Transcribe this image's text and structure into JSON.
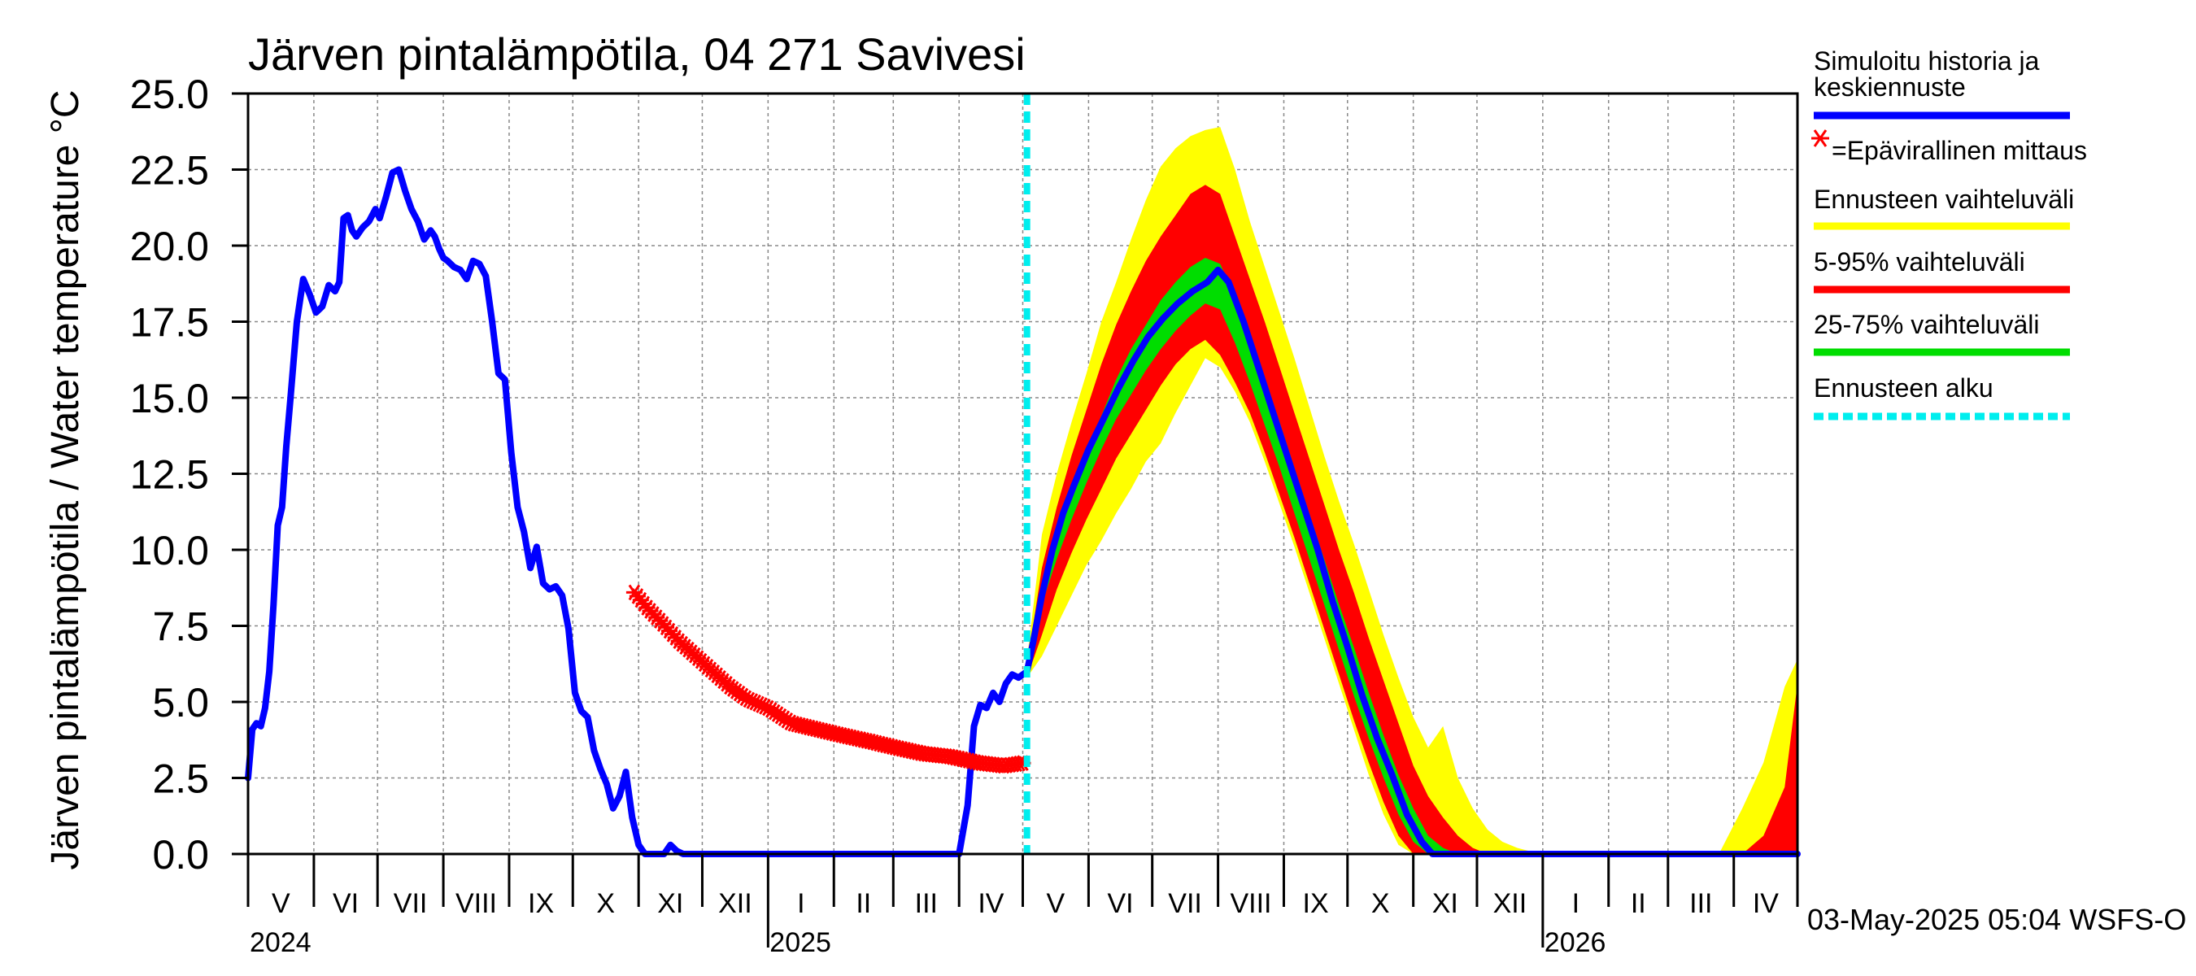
{
  "chart_data": {
    "type": "line",
    "title": "Järven pintalämpötila, 04 271 Savivesi",
    "ylabel": "Järven pintalämpötila / Water temperature °C",
    "xlabel": "",
    "ylim": [
      0.0,
      25.0
    ],
    "yticks": [
      "0.0",
      "2.5",
      "5.0",
      "7.5",
      "10.0",
      "12.5",
      "15.0",
      "17.5",
      "20.0",
      "22.5",
      "25.0"
    ],
    "xlim": [
      "2024-05-01",
      "2026-05-01"
    ],
    "month_labels": [
      "V",
      "VI",
      "VII",
      "VIII",
      "IX",
      "X",
      "XI",
      "XII",
      "I",
      "II",
      "III",
      "IV",
      "V",
      "VI",
      "VII",
      "VIII",
      "IX",
      "X",
      "XI",
      "XII",
      "I",
      "II",
      "III",
      "IV"
    ],
    "year_labels": [
      "2024",
      "2025",
      "2026"
    ],
    "forecast_start": "2025-05-03",
    "footer": "03-May-2025 05:04 WSFS-O",
    "grid": true,
    "legend_position": "right",
    "legend": [
      {
        "label": "Simuloitu historia ja keskiennuste",
        "color": "#0000ff",
        "style": "line"
      },
      {
        "label": "=Epävirallinen mittaus",
        "color": "#ff0000",
        "style": "marker"
      },
      {
        "label": "Ennusteen vaihteluväli",
        "color": "#ffff00",
        "style": "line"
      },
      {
        "label": "5-95% vaihteluväli",
        "color": "#ff0000",
        "style": "line"
      },
      {
        "label": "25-75% vaihteluväli",
        "color": "#00dd00",
        "style": "line"
      },
      {
        "label": "Ennusteen alku",
        "color": "#00eeee",
        "style": "dashed"
      }
    ],
    "colors": {
      "simulated": "#0000ff",
      "measured": "#ff0000",
      "range_full": "#ffff00",
      "range_5_95": "#ff0000",
      "range_25_75": "#00dd00",
      "forecast_start": "#00eeee"
    },
    "series": [
      {
        "name": "Simuloitu historia ja keskiennuste",
        "x": [
          "2024-05-01",
          "2024-05-03",
          "2024-05-05",
          "2024-05-07",
          "2024-05-09",
          "2024-05-11",
          "2024-05-13",
          "2024-05-15",
          "2024-05-17",
          "2024-05-19",
          "2024-05-21",
          "2024-05-24",
          "2024-05-27",
          "2024-05-30",
          "2024-06-02",
          "2024-06-05",
          "2024-06-08",
          "2024-06-11",
          "2024-06-13",
          "2024-06-15",
          "2024-06-17",
          "2024-06-19",
          "2024-06-21",
          "2024-06-24",
          "2024-06-27",
          "2024-06-30",
          "2024-07-02",
          "2024-07-05",
          "2024-07-08",
          "2024-07-11",
          "2024-07-14",
          "2024-07-17",
          "2024-07-20",
          "2024-07-23",
          "2024-07-26",
          "2024-07-28",
          "2024-07-30",
          "2024-08-01",
          "2024-08-03",
          "2024-08-06",
          "2024-08-09",
          "2024-08-12",
          "2024-08-15",
          "2024-08-18",
          "2024-08-21",
          "2024-08-24",
          "2024-08-27",
          "2024-08-30",
          "2024-09-02",
          "2024-09-05",
          "2024-09-08",
          "2024-09-11",
          "2024-09-14",
          "2024-09-17",
          "2024-09-20",
          "2024-09-23",
          "2024-09-26",
          "2024-09-29",
          "2024-10-02",
          "2024-10-05",
          "2024-10-08",
          "2024-10-11",
          "2024-10-14",
          "2024-10-17",
          "2024-10-20",
          "2024-10-23",
          "2024-10-26",
          "2024-10-29",
          "2024-11-01",
          "2024-11-04",
          "2024-11-07",
          "2024-11-10",
          "2024-11-13",
          "2024-11-16",
          "2024-11-19",
          "2024-11-22",
          "2024-11-25",
          "2024-11-28",
          "2024-12-01",
          "2024-12-04",
          "2024-12-08",
          "2024-12-13",
          "2024-12-18",
          "2024-12-22",
          "2024-12-25",
          "2024-12-28",
          "2025-01-05",
          "2025-02-01",
          "2025-03-01",
          "2025-04-01",
          "2025-04-05",
          "2025-04-08",
          "2025-04-11",
          "2025-04-14",
          "2025-04-17",
          "2025-04-20",
          "2025-04-23",
          "2025-04-26",
          "2025-04-29",
          "2025-05-03",
          "2025-05-06",
          "2025-05-10",
          "2025-05-15",
          "2025-05-20",
          "2025-05-25",
          "2025-06-01",
          "2025-06-08",
          "2025-06-15",
          "2025-06-22",
          "2025-06-29",
          "2025-07-06",
          "2025-07-13",
          "2025-07-20",
          "2025-07-27",
          "2025-08-01",
          "2025-08-06",
          "2025-08-13",
          "2025-08-20",
          "2025-08-27",
          "2025-09-03",
          "2025-09-10",
          "2025-09-17",
          "2025-09-24",
          "2025-10-01",
          "2025-10-08",
          "2025-10-15",
          "2025-10-22",
          "2025-10-29",
          "2025-11-05",
          "2025-11-10",
          "2025-11-15",
          "2025-12-01",
          "2026-01-01",
          "2026-02-01",
          "2026-03-01",
          "2026-04-01",
          "2026-05-01"
        ],
        "values": [
          2.5,
          4.1,
          4.3,
          4.2,
          4.8,
          6.0,
          8.2,
          10.8,
          11.4,
          13.4,
          15.0,
          17.5,
          18.9,
          18.4,
          17.8,
          18.0,
          18.7,
          18.5,
          18.8,
          20.9,
          21.0,
          20.5,
          20.3,
          20.6,
          20.8,
          21.2,
          20.9,
          21.6,
          22.4,
          22.5,
          21.8,
          21.2,
          20.8,
          20.2,
          20.5,
          20.3,
          19.9,
          19.6,
          19.5,
          19.3,
          19.2,
          18.9,
          19.5,
          19.4,
          19.0,
          17.5,
          15.8,
          15.6,
          13.2,
          11.4,
          10.6,
          9.4,
          10.1,
          8.9,
          8.7,
          8.8,
          8.5,
          7.4,
          5.3,
          4.7,
          4.5,
          3.4,
          2.8,
          2.3,
          1.5,
          1.9,
          2.7,
          1.2,
          0.3,
          0.0,
          0.0,
          0.0,
          0.0,
          0.3,
          0.1,
          0.0,
          0.0,
          0.0,
          0.0,
          0.0,
          0.0,
          0.0,
          0.0,
          0.0,
          0.0,
          0.0,
          0.0,
          0.0,
          0.0,
          0.0,
          1.6,
          4.2,
          4.9,
          4.8,
          5.3,
          5.0,
          5.6,
          5.9,
          5.8,
          6.0,
          7.0,
          8.5,
          10.0,
          11.2,
          12.1,
          13.3,
          14.3,
          15.3,
          16.2,
          17.0,
          17.6,
          18.1,
          18.5,
          18.8,
          19.2,
          18.8,
          17.5,
          16.0,
          14.5,
          13.0,
          11.5,
          10.0,
          8.3,
          6.8,
          5.2,
          3.8,
          2.6,
          1.3,
          0.4,
          0.0,
          0.0,
          0.0,
          0.0,
          0.0,
          0.0,
          0.0,
          0.0
        ]
      },
      {
        "name": "=Epävirallinen mittaus",
        "x": [
          "2024-10-30",
          "2024-11-05",
          "2024-11-12",
          "2024-11-20",
          "2024-11-28",
          "2024-12-06",
          "2024-12-14",
          "2024-12-22",
          "2025-01-01",
          "2025-01-12",
          "2025-01-24",
          "2025-02-05",
          "2025-02-18",
          "2025-03-02",
          "2025-03-15",
          "2025-03-28",
          "2025-04-10",
          "2025-04-22",
          "2025-05-02"
        ],
        "values": [
          8.6,
          8.1,
          7.6,
          7.0,
          6.5,
          6.0,
          5.5,
          5.1,
          4.8,
          4.3,
          4.1,
          3.9,
          3.7,
          3.5,
          3.3,
          3.2,
          3.0,
          2.9,
          3.0
        ]
      }
    ],
    "forecast_dates": [
      "2025-05-03",
      "2025-05-10",
      "2025-05-17",
      "2025-05-24",
      "2025-05-31",
      "2025-06-07",
      "2025-06-14",
      "2025-06-21",
      "2025-06-28",
      "2025-07-05",
      "2025-07-12",
      "2025-07-19",
      "2025-07-26",
      "2025-08-02",
      "2025-08-09",
      "2025-08-16",
      "2025-08-23",
      "2025-08-30",
      "2025-09-06",
      "2025-09-13",
      "2025-09-20",
      "2025-09-27",
      "2025-10-04",
      "2025-10-11",
      "2025-10-18",
      "2025-10-25",
      "2025-11-01",
      "2025-11-08",
      "2025-11-15",
      "2025-11-22",
      "2025-11-29",
      "2025-12-06",
      "2025-12-13",
      "2025-12-20",
      "2025-12-31",
      "2026-03-25",
      "2026-04-05",
      "2026-04-15",
      "2026-04-25",
      "2026-05-01"
    ],
    "bands": {
      "range_full": {
        "lower": [
          5.8,
          6.5,
          7.5,
          8.5,
          9.5,
          10.3,
          11.2,
          12.0,
          12.9,
          13.5,
          14.5,
          15.4,
          16.3,
          16.0,
          15.2,
          14.2,
          12.9,
          11.5,
          10.1,
          8.6,
          7.1,
          5.6,
          4.1,
          2.6,
          1.3,
          0.3,
          0.0,
          0.0,
          0.0,
          0.0,
          0.0,
          0.0,
          0.0,
          0.0,
          0.0,
          0.0,
          0.0,
          0.0,
          0.0,
          0.0
        ],
        "upper": [
          6.4,
          10.5,
          12.5,
          14.2,
          15.8,
          17.5,
          18.8,
          20.2,
          21.5,
          22.6,
          23.2,
          23.6,
          23.8,
          23.9,
          22.5,
          20.8,
          19.3,
          17.8,
          16.3,
          14.7,
          13.1,
          11.6,
          10.2,
          8.7,
          7.2,
          5.8,
          4.5,
          3.5,
          4.2,
          2.5,
          1.5,
          0.8,
          0.4,
          0.2,
          0.0,
          0.0,
          1.5,
          3.0,
          5.5,
          6.4
        ]
      },
      "range_5_95": {
        "lower": [
          5.8,
          7.2,
          8.7,
          9.9,
          11.0,
          12.0,
          13.0,
          13.8,
          14.6,
          15.4,
          16.1,
          16.6,
          16.9,
          16.4,
          15.5,
          14.5,
          13.2,
          11.8,
          10.4,
          8.9,
          7.4,
          5.9,
          4.4,
          3.0,
          1.7,
          0.6,
          0.0,
          0.0,
          0.0,
          0.0,
          0.0,
          0.0,
          0.0,
          0.0,
          0.0,
          0.0,
          0.0,
          0.0,
          0.0,
          0.0
        ],
        "upper": [
          6.2,
          9.4,
          11.4,
          13.1,
          14.6,
          16.1,
          17.4,
          18.5,
          19.5,
          20.3,
          21.0,
          21.7,
          22.0,
          21.7,
          20.3,
          18.9,
          17.5,
          16.0,
          14.5,
          13.0,
          11.5,
          10.0,
          8.6,
          7.1,
          5.7,
          4.3,
          2.9,
          1.9,
          1.2,
          0.6,
          0.2,
          0.0,
          0.0,
          0.0,
          0.0,
          0.0,
          0.0,
          0.6,
          2.2,
          5.6
        ]
      },
      "range_25_75": {
        "lower": [
          5.9,
          8.2,
          9.7,
          11.0,
          12.2,
          13.3,
          14.3,
          15.1,
          15.9,
          16.6,
          17.2,
          17.7,
          18.1,
          17.9,
          16.8,
          15.5,
          14.1,
          12.7,
          11.2,
          9.7,
          8.2,
          6.7,
          5.2,
          3.8,
          2.5,
          1.3,
          0.4,
          0.0,
          0.0,
          0.0,
          0.0,
          0.0,
          0.0,
          0.0,
          0.0,
          0.0,
          0.0,
          0.0,
          0.0,
          0.0
        ],
        "upper": [
          6.1,
          8.8,
          10.4,
          11.8,
          13.2,
          14.4,
          15.6,
          16.6,
          17.4,
          18.2,
          18.8,
          19.3,
          19.6,
          19.4,
          18.3,
          17.0,
          15.6,
          14.2,
          12.7,
          11.2,
          9.7,
          8.2,
          6.8,
          5.3,
          3.9,
          2.6,
          1.5,
          0.6,
          0.2,
          0.0,
          0.0,
          0.0,
          0.0,
          0.0,
          0.0,
          0.0,
          0.0,
          0.0,
          0.0,
          0.0
        ]
      }
    }
  }
}
